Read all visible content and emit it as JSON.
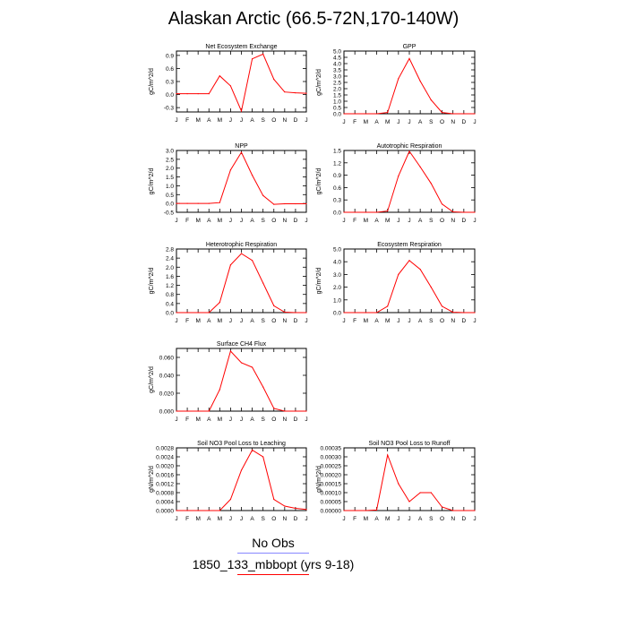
{
  "title": "Alaskan Arctic (66.5-72N,170-140W)",
  "legend": {
    "obs_label": "No Obs",
    "obs_color": "#8888ff",
    "model_label": "1850_133_mbbopt (yrs 9-18)",
    "model_color": "#ff0000"
  },
  "series_color": "#ff0000",
  "chart_data": [
    {
      "type": "line",
      "title": "Net Ecosystem Exchange",
      "ylabel": "gC/m^2/d",
      "categories": [
        "J",
        "F",
        "M",
        "A",
        "M",
        "J",
        "J",
        "A",
        "S",
        "O",
        "N",
        "D",
        "J"
      ],
      "values": [
        0.02,
        0.02,
        0.02,
        0.02,
        0.43,
        0.2,
        -0.38,
        0.82,
        0.93,
        0.35,
        0.06,
        0.04,
        0.03
      ],
      "ylim": [
        -0.4,
        1.0
      ],
      "yticks": [
        "-0.3",
        "0.0",
        "0.3",
        "0.6",
        "0.9"
      ],
      "ytick_values": [
        -0.3,
        0.0,
        0.3,
        0.6,
        0.9
      ]
    },
    {
      "type": "line",
      "title": "GPP",
      "ylabel": "gC/m^2/d",
      "categories": [
        "J",
        "F",
        "M",
        "A",
        "M",
        "J",
        "J",
        "A",
        "S",
        "O",
        "N",
        "D",
        "J"
      ],
      "values": [
        0,
        0,
        0,
        0,
        0.1,
        2.8,
        4.4,
        2.6,
        1.1,
        0.1,
        0,
        0,
        0
      ],
      "ylim": [
        0,
        5.0
      ],
      "yticks": [
        "0.0",
        "0.5",
        "1.0",
        "1.5",
        "2.0",
        "2.5",
        "3.0",
        "3.5",
        "4.0",
        "4.5",
        "5.0"
      ],
      "ytick_values": [
        0,
        0.5,
        1.0,
        1.5,
        2.0,
        2.5,
        3.0,
        3.5,
        4.0,
        4.5,
        5.0
      ]
    },
    {
      "type": "line",
      "title": "NPP",
      "ylabel": "gC/m^2/d",
      "categories": [
        "J",
        "F",
        "M",
        "A",
        "M",
        "J",
        "J",
        "A",
        "S",
        "O",
        "N",
        "D",
        "J"
      ],
      "values": [
        0,
        0,
        0,
        0,
        0.05,
        1.9,
        2.9,
        1.6,
        0.45,
        -0.05,
        -0.02,
        -0.02,
        -0.02
      ],
      "ylim": [
        -0.5,
        3.0
      ],
      "yticks": [
        "-0.5",
        "0.0",
        "0.5",
        "1.0",
        "1.5",
        "2.0",
        "2.5",
        "3.0"
      ],
      "ytick_values": [
        -0.5,
        0.0,
        0.5,
        1.0,
        1.5,
        2.0,
        2.5,
        3.0
      ]
    },
    {
      "type": "line",
      "title": "Autotrophic Respiration",
      "ylabel": "gC/m^2/d",
      "categories": [
        "J",
        "F",
        "M",
        "A",
        "M",
        "J",
        "J",
        "A",
        "S",
        "O",
        "N",
        "D",
        "J"
      ],
      "values": [
        0,
        0,
        0,
        0,
        0.03,
        0.88,
        1.48,
        1.1,
        0.7,
        0.2,
        0.01,
        0,
        0
      ],
      "ylim": [
        0,
        1.5
      ],
      "yticks": [
        "0.0",
        "0.3",
        "0.6",
        "0.9",
        "1.2",
        "1.5"
      ],
      "ytick_values": [
        0,
        0.3,
        0.6,
        0.9,
        1.2,
        1.5
      ]
    },
    {
      "type": "line",
      "title": "Heterotrophic Respiration",
      "ylabel": "gC/m^2/d",
      "categories": [
        "J",
        "F",
        "M",
        "A",
        "M",
        "J",
        "J",
        "A",
        "S",
        "O",
        "N",
        "D",
        "J"
      ],
      "values": [
        0,
        0,
        0,
        0,
        0.45,
        2.1,
        2.6,
        2.3,
        1.3,
        0.3,
        0.02,
        0,
        0
      ],
      "ylim": [
        0,
        2.8
      ],
      "yticks": [
        "0.0",
        "0.4",
        "0.8",
        "1.2",
        "1.6",
        "2.0",
        "2.4",
        "2.8"
      ],
      "ytick_values": [
        0,
        0.4,
        0.8,
        1.2,
        1.6,
        2.0,
        2.4,
        2.8
      ]
    },
    {
      "type": "line",
      "title": "Ecosystem Respiration",
      "ylabel": "gC/m^2/d",
      "categories": [
        "J",
        "F",
        "M",
        "A",
        "M",
        "J",
        "J",
        "A",
        "S",
        "O",
        "N",
        "D",
        "J"
      ],
      "values": [
        0,
        0,
        0,
        0,
        0.5,
        3.0,
        4.1,
        3.4,
        2.0,
        0.5,
        0.03,
        0,
        0
      ],
      "ylim": [
        0,
        5.0
      ],
      "yticks": [
        "0.0",
        "1.0",
        "2.0",
        "3.0",
        "4.0",
        "5.0"
      ],
      "ytick_values": [
        0,
        1.0,
        2.0,
        3.0,
        4.0,
        5.0
      ]
    },
    {
      "type": "line",
      "title": "Surface CH4 Flux",
      "ylabel": "gC/m^2/d",
      "categories": [
        "J",
        "F",
        "M",
        "A",
        "M",
        "J",
        "J",
        "A",
        "S",
        "O",
        "N",
        "D",
        "J"
      ],
      "values": [
        0,
        0,
        0,
        0,
        0.024,
        0.067,
        0.054,
        0.049,
        0.027,
        0.003,
        0,
        0,
        0
      ],
      "ylim": [
        0,
        0.07
      ],
      "yticks": [
        "0.000",
        "0.020",
        "0.040",
        "0.060"
      ],
      "ytick_values": [
        0,
        0.02,
        0.04,
        0.06
      ]
    },
    {
      "type": "line",
      "title": "Soil NO3 Pool Loss to Leaching",
      "ylabel": "gN/m^2/d",
      "categories": [
        "J",
        "F",
        "M",
        "A",
        "M",
        "J",
        "J",
        "A",
        "S",
        "O",
        "N",
        "D",
        "J"
      ],
      "values": [
        0,
        0,
        0,
        0,
        0,
        0.0005,
        0.0018,
        0.0027,
        0.0024,
        0.0005,
        0.0002,
        0.0001,
        5e-05
      ],
      "ylim": [
        0,
        0.0028
      ],
      "yticks": [
        "0.0000",
        "0.0004",
        "0.0008",
        "0.0012",
        "0.0016",
        "0.0020",
        "0.0024",
        "0.0028"
      ],
      "ytick_values": [
        0,
        0.0004,
        0.0008,
        0.0012,
        0.0016,
        0.002,
        0.0024,
        0.0028
      ]
    },
    {
      "type": "line",
      "title": "Soil NO3 Pool Loss to Runoff",
      "ylabel": "gN/m^2/d",
      "categories": [
        "J",
        "F",
        "M",
        "A",
        "M",
        "J",
        "J",
        "A",
        "S",
        "O",
        "N",
        "D",
        "J"
      ],
      "values": [
        0,
        0,
        0,
        3e-06,
        0.00031,
        0.00015,
        5e-05,
        0.0001,
        0.0001,
        2e-05,
        0,
        0,
        0
      ],
      "ylim": [
        0,
        0.00035
      ],
      "yticks": [
        "0.00000",
        "0.00005",
        "0.00010",
        "0.00015",
        "0.00020",
        "0.00025",
        "0.00030",
        "0.00035"
      ],
      "ytick_values": [
        0,
        5e-05,
        0.0001,
        0.00015,
        0.0002,
        0.00025,
        0.0003,
        0.00035
      ]
    }
  ]
}
